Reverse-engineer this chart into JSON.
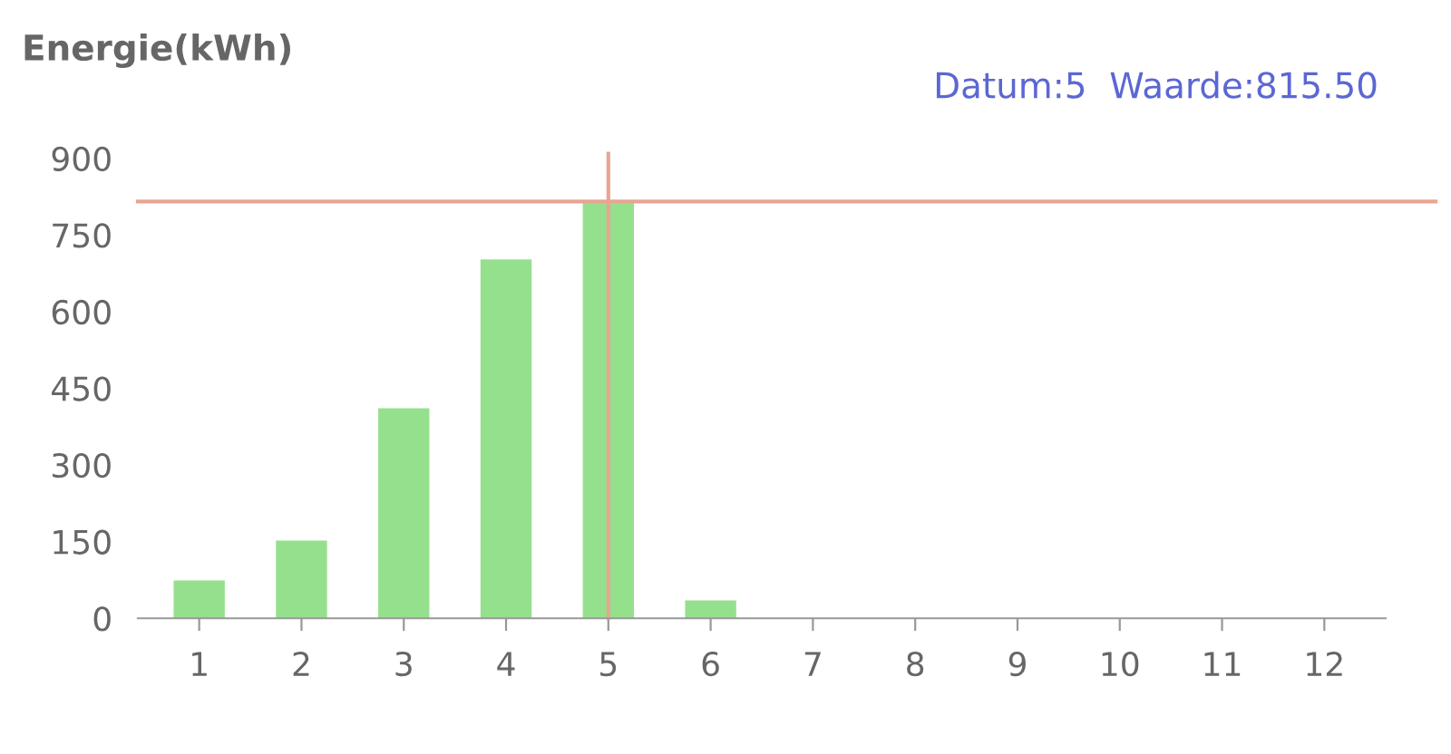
{
  "chart_data": {
    "type": "bar",
    "ylabel": "Energie(kWh)",
    "categories": [
      "1",
      "2",
      "3",
      "4",
      "5",
      "6",
      "7",
      "8",
      "9",
      "10",
      "11",
      "12"
    ],
    "values": [
      74,
      152,
      411,
      702,
      815.5,
      35,
      null,
      null,
      null,
      null,
      null,
      null
    ],
    "color": "#95e08d",
    "ylim": [
      0,
      900
    ],
    "yticks": [
      0,
      150,
      300,
      450,
      600,
      750,
      900
    ],
    "grid": false,
    "ref_lines": [
      {
        "axis": "x",
        "value": "5",
        "color": "#e8a592"
      },
      {
        "axis": "y",
        "value": 815.5,
        "color": "#e8a592"
      }
    ],
    "annotations": [
      "Datum:5  Waarde:815.50"
    ]
  }
}
